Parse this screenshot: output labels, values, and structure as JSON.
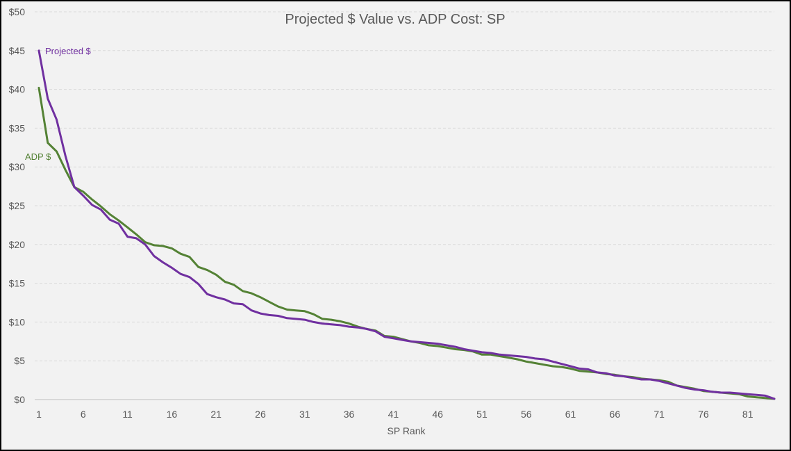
{
  "chart_data": {
    "type": "line",
    "title": "Projected $ Value vs. ADP Cost: SP",
    "xlabel": "SP Rank",
    "ylabel": "",
    "xlim": [
      1,
      84
    ],
    "ylim": [
      0,
      50
    ],
    "x_ticks": [
      1,
      6,
      11,
      16,
      21,
      26,
      31,
      36,
      41,
      46,
      51,
      56,
      61,
      66,
      71,
      76,
      81
    ],
    "y_ticks": [
      0,
      5,
      10,
      15,
      20,
      25,
      30,
      35,
      40,
      45,
      50
    ],
    "y_tick_labels": [
      "$0",
      "$5",
      "$10",
      "$15",
      "$20",
      "$25",
      "$30",
      "$35",
      "$40",
      "$45",
      "$50"
    ],
    "grid": "horizontal-dashed",
    "legend": "inline-labels",
    "series": [
      {
        "name": "Projected $",
        "color": "#7030a0",
        "label_at": "start-top",
        "values": [
          45.0,
          38.8,
          36.1,
          31.4,
          27.4,
          26.3,
          25.1,
          24.5,
          23.2,
          22.7,
          21.0,
          20.8,
          20.0,
          18.5,
          17.7,
          17.0,
          16.2,
          15.8,
          14.9,
          13.6,
          13.2,
          12.9,
          12.4,
          12.3,
          11.5,
          11.1,
          10.9,
          10.8,
          10.5,
          10.4,
          10.3,
          10.0,
          9.8,
          9.7,
          9.6,
          9.4,
          9.3,
          9.1,
          8.8,
          8.1,
          7.9,
          7.7,
          7.5,
          7.4,
          7.3,
          7.2,
          7.0,
          6.8,
          6.5,
          6.3,
          6.1,
          6.0,
          5.8,
          5.7,
          5.6,
          5.5,
          5.3,
          5.2,
          4.9,
          4.6,
          4.3,
          4.0,
          3.9,
          3.5,
          3.4,
          3.1,
          3.0,
          2.8,
          2.6,
          2.6,
          2.4,
          2.1,
          1.8,
          1.5,
          1.3,
          1.2,
          1.0,
          0.9,
          0.9,
          0.8,
          0.7,
          0.6,
          0.5,
          0.1
        ]
      },
      {
        "name": "ADP $",
        "color": "#548235",
        "label_at": "near-x-1-y-31",
        "values": [
          40.2,
          33.1,
          32.0,
          29.6,
          27.4,
          26.8,
          25.8,
          24.9,
          23.9,
          23.1,
          22.2,
          21.3,
          20.3,
          19.9,
          19.8,
          19.5,
          18.8,
          18.4,
          17.1,
          16.7,
          16.1,
          15.2,
          14.8,
          14.0,
          13.7,
          13.2,
          12.6,
          12.0,
          11.6,
          11.5,
          11.4,
          11.0,
          10.4,
          10.3,
          10.1,
          9.8,
          9.4,
          9.1,
          8.9,
          8.2,
          8.1,
          7.8,
          7.5,
          7.3,
          7.0,
          6.9,
          6.7,
          6.5,
          6.4,
          6.2,
          5.8,
          5.8,
          5.6,
          5.4,
          5.2,
          4.9,
          4.7,
          4.5,
          4.3,
          4.2,
          4.0,
          3.7,
          3.6,
          3.5,
          3.3,
          3.2,
          3.0,
          2.9,
          2.7,
          2.6,
          2.5,
          2.3,
          1.8,
          1.6,
          1.4,
          1.1,
          1.0,
          0.9,
          0.8,
          0.7,
          0.4,
          0.3,
          0.2,
          0.1
        ]
      }
    ]
  }
}
